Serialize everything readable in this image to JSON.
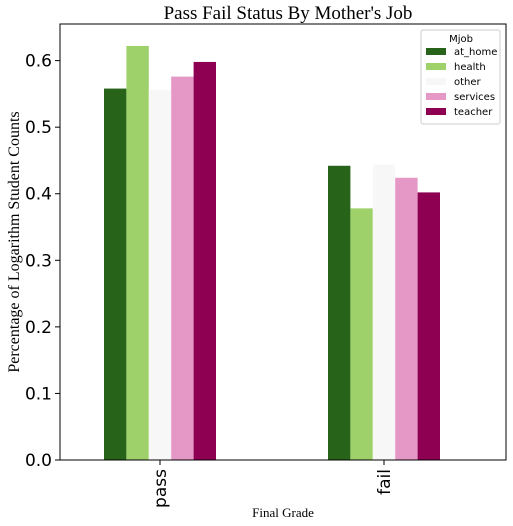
{
  "chart_data": {
    "type": "bar",
    "title": "Pass Fail Status By Mother's Job",
    "xlabel": "Final Grade",
    "ylabel": "Percentage of Logarithm Student Counts",
    "categories": [
      "pass",
      "fail"
    ],
    "ylim": [
      0,
      0.655
    ],
    "yticks": [
      "0.0",
      "0.1",
      "0.2",
      "0.3",
      "0.4",
      "0.5",
      "0.6"
    ],
    "legend_title": "Mjob",
    "legend_position": "top-right",
    "grid": false,
    "series": [
      {
        "name": "at_home",
        "color": "#276419",
        "values": [
          0.558,
          0.442
        ]
      },
      {
        "name": "health",
        "color": "#9ed16a",
        "values": [
          0.622,
          0.378
        ]
      },
      {
        "name": "other",
        "color": "#f7f7f7",
        "values": [
          0.556,
          0.444
        ]
      },
      {
        "name": "services",
        "color": "#e598c6",
        "values": [
          0.576,
          0.424
        ]
      },
      {
        "name": "teacher",
        "color": "#8e0152",
        "values": [
          0.598,
          0.402
        ]
      }
    ]
  }
}
